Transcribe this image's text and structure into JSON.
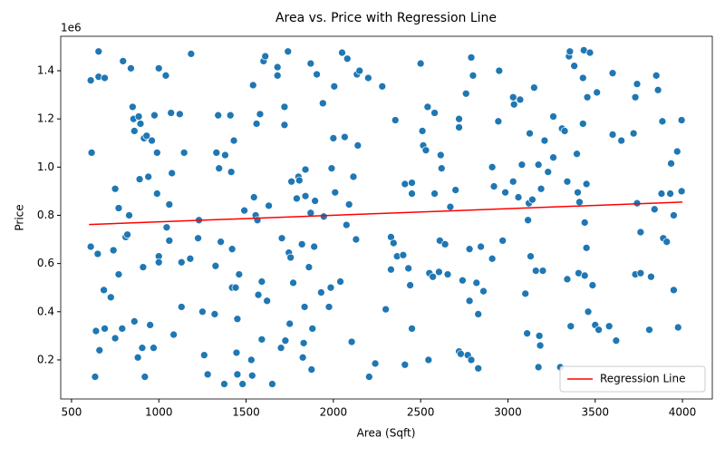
{
  "chart_data": {
    "type": "scatter",
    "title": "Area vs. Price with Regression Line",
    "x_label": "Area (Sqft)",
    "y_label": "Price",
    "y_offset_label": "1e6",
    "xlim": [
      438,
      4171
    ],
    "ylim": [
      38000,
      1543000
    ],
    "xticks": [
      500,
      1000,
      1500,
      2000,
      2500,
      3000,
      3500,
      4000
    ],
    "yticks": [
      {
        "value": 200000,
        "label": "0.2"
      },
      {
        "value": 400000,
        "label": "0.4"
      },
      {
        "value": 600000,
        "label": "0.6"
      },
      {
        "value": 800000,
        "label": "0.8"
      },
      {
        "value": 1000000,
        "label": "1.0"
      },
      {
        "value": 1200000,
        "label": "1.2"
      },
      {
        "value": 1400000,
        "label": "1.4"
      }
    ],
    "grid": false,
    "legend": "lower right",
    "series": [
      {
        "color": "#1f77b4",
        "x": [
          610,
          615,
          610,
          635,
          640,
          650,
          655,
          655,
          660,
          685,
          690,
          690,
          725,
          740,
          750,
          750,
          770,
          770,
          790,
          795,
          810,
          820,
          830,
          840,
          850,
          855,
          860,
          860,
          880,
          885,
          890,
          895,
          905,
          910,
          915,
          920,
          930,
          940,
          950,
          960,
          970,
          975,
          990,
          990,
          1000,
          1000,
          1000,
          1040,
          1045,
          1060,
          1060,
          1070,
          1075,
          1085,
          1120,
          1130,
          1130,
          1145,
          1180,
          1185,
          1225,
          1230,
          1250,
          1260,
          1280,
          1320,
          1325,
          1330,
          1340,
          1345,
          1355,
          1375,
          1380,
          1410,
          1415,
          1420,
          1420,
          1430,
          1440,
          1445,
          1450,
          1450,
          1460,
          1480,
          1490,
          1530,
          1535,
          1540,
          1545,
          1555,
          1560,
          1565,
          1570,
          1580,
          1590,
          1590,
          1600,
          1610,
          1620,
          1630,
          1650,
          1680,
          1680,
          1700,
          1705,
          1720,
          1720,
          1725,
          1740,
          1745,
          1750,
          1755,
          1760,
          1770,
          1790,
          1800,
          1805,
          1820,
          1825,
          1830,
          1835,
          1840,
          1840,
          1860,
          1870,
          1870,
          1875,
          1880,
          1890,
          1895,
          1905,
          1930,
          1940,
          1945,
          1975,
          1985,
          1990,
          2000,
          2005,
          2010,
          2040,
          2050,
          2065,
          2075,
          2080,
          2090,
          2105,
          2115,
          2130,
          2135,
          2140,
          2150,
          2200,
          2205,
          2240,
          2280,
          2300,
          2330,
          2330,
          2345,
          2355,
          2365,
          2400,
          2410,
          2410,
          2430,
          2440,
          2450,
          2450,
          2450,
          2500,
          2510,
          2515,
          2530,
          2540,
          2545,
          2550,
          2570,
          2580,
          2580,
          2605,
          2610,
          2615,
          2620,
          2640,
          2655,
          2670,
          2700,
          2720,
          2720,
          2720,
          2730,
          2740,
          2760,
          2770,
          2780,
          2780,
          2790,
          2790,
          2800,
          2820,
          2830,
          2830,
          2845,
          2860,
          2910,
          2910,
          2920,
          2945,
          2950,
          2970,
          2985,
          3030,
          3030,
          3035,
          3060,
          3070,
          3080,
          3100,
          3110,
          3115,
          3120,
          3125,
          3130,
          3140,
          3150,
          3160,
          3175,
          3175,
          3180,
          3185,
          3190,
          3200,
          3210,
          3230,
          3260,
          3260,
          3300,
          3310,
          3325,
          3340,
          3340,
          3350,
          3355,
          3360,
          3380,
          3395,
          3400,
          3405,
          3410,
          3430,
          3430,
          3435,
          3440,
          3440,
          3450,
          3450,
          3455,
          3460,
          3470,
          3485,
          3500,
          3510,
          3520,
          3580,
          3600,
          3600,
          3620,
          3650,
          3720,
          3730,
          3730,
          3740,
          3740,
          3760,
          3760,
          3810,
          3820,
          3840,
          3850,
          3860,
          3880,
          3885,
          3890,
          3910,
          3930,
          3935,
          3950,
          3950,
          3970,
          3975,
          3995,
          3995
        ],
        "values": [
          1360000,
          1060000,
          670000,
          130000,
          320000,
          640000,
          1480000,
          1375000,
          240000,
          490000,
          1370000,
          330000,
          460000,
          655000,
          290000,
          910000,
          830000,
          555000,
          330000,
          1440000,
          710000,
          720000,
          800000,
          1410000,
          1250000,
          1200000,
          1150000,
          360000,
          210000,
          1210000,
          950000,
          1180000,
          250000,
          585000,
          1120000,
          130000,
          1130000,
          960000,
          345000,
          1110000,
          250000,
          1215000,
          890000,
          1060000,
          1410000,
          630000,
          605000,
          1380000,
          750000,
          695000,
          845000,
          1225000,
          975000,
          305000,
          1220000,
          605000,
          420000,
          1060000,
          620000,
          1470000,
          705000,
          780000,
          400000,
          220000,
          140000,
          390000,
          590000,
          1060000,
          1215000,
          995000,
          690000,
          100000,
          1050000,
          1215000,
          980000,
          660000,
          500000,
          1110000,
          500000,
          230000,
          140000,
          370000,
          555000,
          100000,
          820000,
          200000,
          135000,
          1340000,
          875000,
          800000,
          1180000,
          780000,
          470000,
          1220000,
          285000,
          525000,
          1440000,
          1460000,
          445000,
          840000,
          100000,
          1380000,
          1415000,
          250000,
          705000,
          1250000,
          1175000,
          280000,
          1480000,
          645000,
          350000,
          625000,
          940000,
          520000,
          870000,
          960000,
          945000,
          680000,
          210000,
          270000,
          420000,
          880000,
          990000,
          585000,
          1430000,
          810000,
          160000,
          330000,
          670000,
          860000,
          1385000,
          480000,
          1265000,
          795000,
          420000,
          500000,
          995000,
          1120000,
          1335000,
          895000,
          525000,
          1475000,
          1125000,
          760000,
          1450000,
          845000,
          275000,
          960000,
          700000,
          1385000,
          1090000,
          1400000,
          1370000,
          130000,
          185000,
          1335000,
          410000,
          575000,
          710000,
          685000,
          1195000,
          630000,
          635000,
          930000,
          180000,
          580000,
          510000,
          890000,
          935000,
          330000,
          1430000,
          1150000,
          1090000,
          1070000,
          1250000,
          200000,
          560000,
          545000,
          1225000,
          890000,
          565000,
          695000,
          1050000,
          995000,
          680000,
          555000,
          835000,
          905000,
          1200000,
          1165000,
          235000,
          225000,
          530000,
          1305000,
          220000,
          660000,
          445000,
          200000,
          1455000,
          1380000,
          520000,
          165000,
          390000,
          670000,
          485000,
          620000,
          1000000,
          920000,
          1190000,
          1400000,
          695000,
          895000,
          940000,
          1290000,
          1260000,
          875000,
          1280000,
          1010000,
          475000,
          310000,
          780000,
          850000,
          1140000,
          630000,
          865000,
          1330000,
          570000,
          170000,
          1010000,
          300000,
          260000,
          910000,
          570000,
          1110000,
          980000,
          1040000,
          1210000,
          170000,
          1160000,
          1150000,
          940000,
          535000,
          1460000,
          1480000,
          340000,
          1420000,
          1055000,
          895000,
          560000,
          855000,
          1370000,
          1180000,
          1485000,
          550000,
          770000,
          930000,
          665000,
          1290000,
          400000,
          1475000,
          510000,
          345000,
          1310000,
          325000,
          340000,
          1135000,
          1390000,
          280000,
          1110000,
          1140000,
          1290000,
          555000,
          850000,
          1345000,
          560000,
          730000,
          325000,
          545000,
          825000,
          1380000,
          1320000,
          890000,
          1190000,
          705000,
          690000,
          890000,
          1015000,
          800000,
          490000,
          1065000,
          335000,
          1195000,
          900000
        ]
      }
    ],
    "regression": {
      "name": "Regression Line",
      "color": "#ff0000",
      "x": [
        600,
        4000
      ],
      "values": [
        762000,
        855000
      ]
    }
  }
}
